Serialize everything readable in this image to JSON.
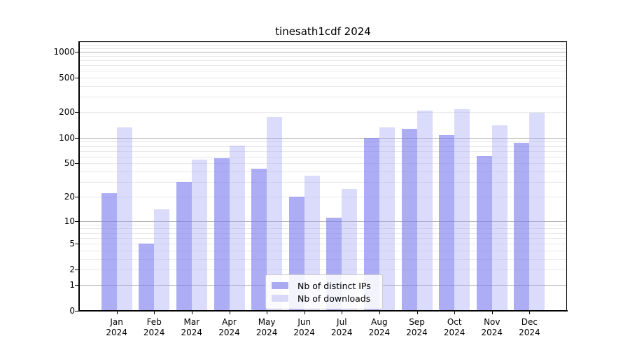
{
  "chart_data": {
    "type": "bar",
    "title": "tinesath1cdf 2024",
    "xlabel": "",
    "ylabel": "",
    "x_year_label": "2024",
    "categories": [
      "Jan",
      "Feb",
      "Mar",
      "Apr",
      "May",
      "Jun",
      "Jul",
      "Aug",
      "Sep",
      "Oct",
      "Nov",
      "Dec"
    ],
    "series": [
      {
        "name": "Nb of distinct IPs",
        "color_base": "#7a7af0",
        "alpha": 0.62,
        "legend_color": "#aaaaf2",
        "values": [
          22,
          5,
          30,
          58,
          43,
          20,
          11,
          100,
          128,
          107,
          61,
          87
        ]
      },
      {
        "name": "Nb of downloads",
        "color_base": "#a0a0f5",
        "alpha": 0.38,
        "legend_color": "#d8d8f9",
        "values": [
          133,
          14,
          55,
          81,
          175,
          36,
          25,
          133,
          208,
          215,
          140,
          196
        ]
      }
    ],
    "y_axis": {
      "scale": "symlog",
      "ticks": [
        0,
        1,
        2,
        5,
        10,
        20,
        50,
        100,
        200,
        500,
        1000
      ],
      "ylim": [
        0,
        1322
      ],
      "major_gridlines": [
        1,
        10,
        100,
        1000
      ],
      "minor_gridlines": [
        2,
        3,
        4,
        5,
        6,
        7,
        8,
        9,
        20,
        30,
        40,
        50,
        60,
        70,
        80,
        90,
        200,
        300,
        400,
        500,
        600,
        700,
        800,
        900,
        1100,
        1200,
        1300
      ]
    },
    "grid": "on",
    "legend_position": "bottom-center"
  }
}
